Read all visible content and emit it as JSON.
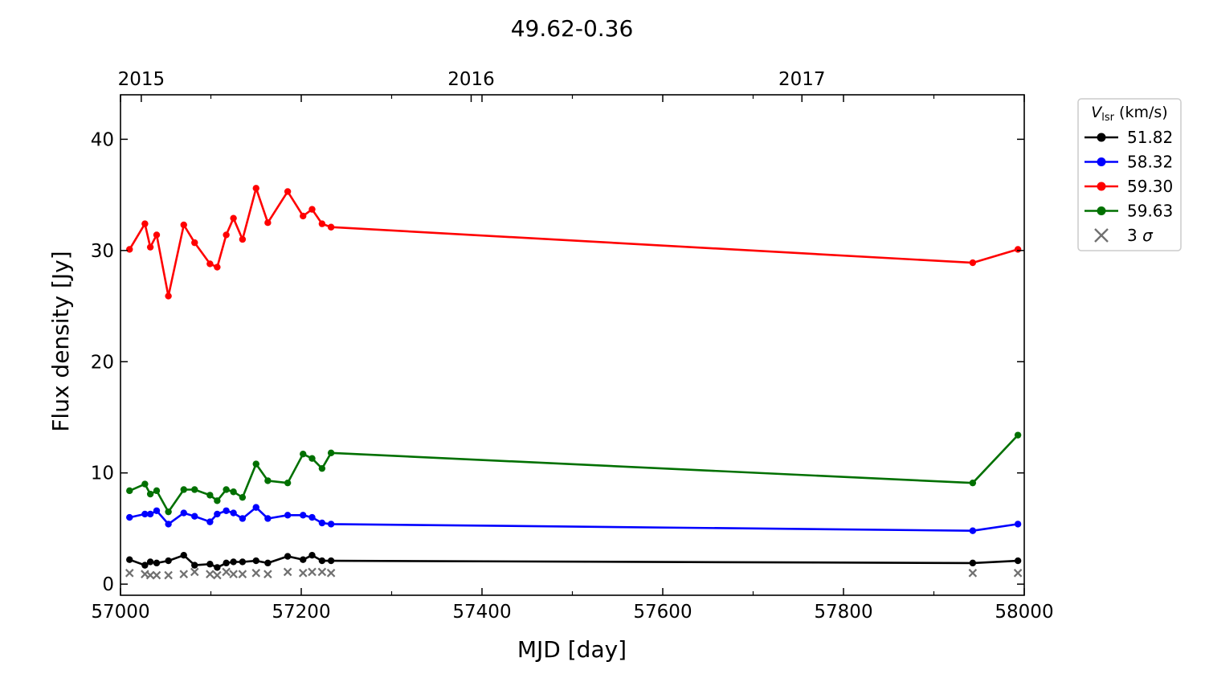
{
  "chart_data": {
    "type": "line",
    "title": "49.62-0.36",
    "xlabel": "MJD [day]",
    "ylabel": "Flux density [Jy]",
    "xlim": [
      57000,
      58000
    ],
    "ylim": [
      -1,
      44
    ],
    "x_ticks": [
      57000,
      57200,
      57400,
      57600,
      57800,
      58000
    ],
    "y_ticks": [
      0,
      10,
      20,
      30,
      40
    ],
    "top_axis": {
      "ticks": [
        {
          "label": "2015",
          "mjd": 57023
        },
        {
          "label": "2016",
          "mjd": 57388
        },
        {
          "label": "2017",
          "mjd": 57754
        }
      ]
    },
    "grid": false,
    "legend": {
      "position": "outside-top-right",
      "title_italic": "V",
      "title_sub": "lsr",
      "title_rest": " (km/s)",
      "sigma_label_prefix": "3 ",
      "sigma_label_symbol": "σ"
    },
    "series": [
      {
        "name": "51.82",
        "color": "#000000",
        "x": [
          57010,
          57027,
          57033,
          57040,
          57053,
          57070,
          57082,
          57099,
          57107,
          57117,
          57125,
          57135,
          57150,
          57163,
          57185,
          57202,
          57212,
          57223,
          57233,
          57943,
          57993
        ],
        "y": [
          2.2,
          1.7,
          2.0,
          1.9,
          2.1,
          2.6,
          1.7,
          1.8,
          1.5,
          1.9,
          2.0,
          2.0,
          2.1,
          1.9,
          2.5,
          2.2,
          2.6,
          2.1,
          2.1,
          1.9,
          2.1
        ]
      },
      {
        "name": "58.32",
        "color": "#0000ff",
        "x": [
          57010,
          57027,
          57033,
          57040,
          57053,
          57070,
          57082,
          57099,
          57107,
          57117,
          57125,
          57135,
          57150,
          57163,
          57185,
          57202,
          57212,
          57223,
          57233,
          57943,
          57993
        ],
        "y": [
          6.0,
          6.3,
          6.3,
          6.6,
          5.4,
          6.4,
          6.1,
          5.6,
          6.3,
          6.6,
          6.4,
          5.9,
          6.9,
          5.9,
          6.2,
          6.2,
          6.0,
          5.5,
          5.4,
          4.8,
          5.4
        ]
      },
      {
        "name": "59.30",
        "color": "#ff0000",
        "x": [
          57010,
          57027,
          57033,
          57040,
          57053,
          57070,
          57082,
          57099,
          57107,
          57117,
          57125,
          57135,
          57150,
          57163,
          57185,
          57202,
          57212,
          57223,
          57233,
          57943,
          57993
        ],
        "y": [
          30.1,
          32.4,
          30.3,
          31.4,
          25.9,
          32.3,
          30.7,
          28.8,
          28.5,
          31.4,
          32.9,
          31.0,
          35.6,
          32.5,
          35.3,
          33.1,
          33.7,
          32.4,
          32.1,
          28.9,
          30.1
        ]
      },
      {
        "name": "59.63",
        "color": "#007000",
        "x": [
          57010,
          57027,
          57033,
          57040,
          57053,
          57070,
          57082,
          57099,
          57107,
          57117,
          57125,
          57135,
          57150,
          57163,
          57185,
          57202,
          57212,
          57223,
          57233,
          57943,
          57993
        ],
        "y": [
          8.4,
          9.0,
          8.1,
          8.4,
          6.5,
          8.5,
          8.5,
          8.0,
          7.5,
          8.5,
          8.3,
          7.8,
          10.8,
          9.3,
          9.1,
          11.7,
          11.3,
          10.4,
          11.8,
          9.1,
          13.4
        ]
      }
    ],
    "sigma_markers": {
      "name": "3 σ",
      "color": "#707070",
      "x": [
        57010,
        57027,
        57033,
        57040,
        57053,
        57070,
        57082,
        57099,
        57107,
        57117,
        57125,
        57135,
        57150,
        57163,
        57185,
        57202,
        57212,
        57223,
        57233,
        57943,
        57993
      ],
      "y": [
        1.0,
        0.9,
        0.8,
        0.8,
        0.8,
        0.9,
        1.1,
        0.9,
        0.8,
        1.1,
        0.9,
        0.9,
        1.0,
        0.9,
        1.1,
        1.0,
        1.1,
        1.1,
        1.0,
        1.0,
        1.0
      ]
    }
  }
}
